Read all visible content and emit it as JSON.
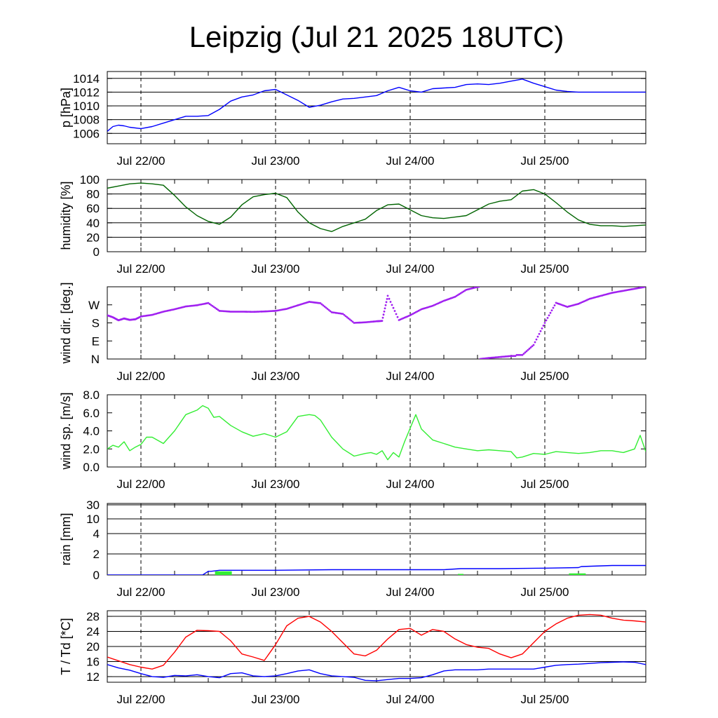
{
  "title": "Leipzig (Jul 21 2025 18UTC)",
  "x_tick_labels": [
    "Jul 22/00",
    "Jul 23/00",
    "Jul 24/00",
    "Jul 25/00"
  ],
  "colors": {
    "pressure": "#0000ff",
    "humidity": "#006400",
    "wind_direction": "#a020f0",
    "wind_speed": "#33ee33",
    "rain_accum": "#0000ff",
    "rain_bar": "#33ee33",
    "temperature": "#ff0000",
    "dewpoint": "#0000ff"
  },
  "chart_data": [
    {
      "type": "line",
      "ylabel": "p [hPa]",
      "x_unit": "hours since Jul 21 18UTC",
      "xlim": [
        0,
        96
      ],
      "ylim": [
        1004.5,
        1015
      ],
      "yticks": [
        1006,
        1008,
        1010,
        1012,
        1014
      ],
      "ytick_labels": [
        "1006",
        "1008",
        "1010",
        "1012",
        "1014"
      ],
      "series": [
        {
          "x": [
            0,
            1,
            2,
            3,
            4,
            6,
            8,
            10,
            12,
            14,
            16,
            18,
            20,
            22,
            24,
            26,
            28,
            30,
            32,
            34,
            36,
            38,
            40,
            42,
            44,
            46,
            48,
            50,
            52,
            54,
            56,
            58,
            60,
            62,
            64,
            66,
            68,
            70,
            72,
            74,
            76,
            78,
            80,
            82,
            84,
            86,
            88,
            90,
            92,
            94,
            96
          ],
          "y": [
            1006.3,
            1007.0,
            1007.2,
            1007.1,
            1006.9,
            1006.7,
            1007.0,
            1007.5,
            1008.0,
            1008.5,
            1008.5,
            1008.6,
            1009.5,
            1010.7,
            1011.3,
            1011.6,
            1012.2,
            1012.4,
            1011.6,
            1010.8,
            1009.8,
            1010.1,
            1010.6,
            1011.0,
            1011.1,
            1011.3,
            1011.5,
            1012.2,
            1012.7,
            1012.2,
            1012.0,
            1012.5,
            1012.6,
            1012.7,
            1013.1,
            1013.2,
            1013.1,
            1013.3,
            1013.6,
            1013.9,
            1013.3,
            1012.8,
            1012.3,
            1012.1,
            1012.0,
            1012.0,
            1012.0,
            1012.0,
            1012.0,
            1012.0,
            1012.0
          ]
        }
      ]
    },
    {
      "type": "line",
      "ylabel": "humidity [%]",
      "x_unit": "hours since Jul 21 18UTC",
      "xlim": [
        0,
        96
      ],
      "ylim": [
        0,
        100
      ],
      "yticks": [
        0,
        20,
        40,
        60,
        80,
        100
      ],
      "ytick_labels": [
        "0",
        "20",
        "40",
        "60",
        "80",
        "100"
      ],
      "series": [
        {
          "x": [
            0,
            2,
            4,
            6,
            8,
            10,
            12,
            14,
            16,
            18,
            20,
            22,
            24,
            26,
            28,
            30,
            32,
            34,
            36,
            38,
            40,
            42,
            44,
            46,
            48,
            50,
            52,
            54,
            56,
            58,
            60,
            62,
            64,
            66,
            68,
            70,
            72,
            74,
            76,
            78,
            80,
            82,
            84,
            86,
            88,
            90,
            92,
            94,
            96
          ],
          "y": [
            88,
            91,
            94,
            95,
            94,
            92,
            78,
            62,
            50,
            42,
            38,
            48,
            65,
            76,
            79,
            81,
            75,
            55,
            40,
            32,
            28,
            35,
            40,
            45,
            57,
            65,
            66,
            58,
            50,
            47,
            46,
            48,
            50,
            58,
            66,
            70,
            72,
            84,
            86,
            80,
            68,
            55,
            44,
            38,
            36,
            36,
            35,
            36,
            37
          ]
        }
      ]
    },
    {
      "type": "scatter",
      "ylabel": "wind dir. [deg.]",
      "x_unit": "hours since Jul 21 18UTC",
      "xlim": [
        0,
        96
      ],
      "ylim": [
        0,
        360
      ],
      "yticks": [
        0,
        90,
        180,
        270
      ],
      "ytick_labels": [
        "N",
        "E",
        "S",
        "W"
      ],
      "series": [
        {
          "x": [
            0,
            1,
            2,
            3,
            4,
            5,
            6,
            8,
            10,
            12,
            14,
            16,
            18,
            20,
            22,
            24,
            26,
            28,
            30,
            32,
            34,
            36,
            38,
            40,
            42,
            44,
            46,
            48,
            49,
            50,
            52,
            54,
            56,
            58,
            60,
            62,
            64,
            66,
            68,
            70,
            72,
            74,
            76,
            78,
            80,
            82,
            84,
            86,
            88,
            90,
            92,
            94,
            96
          ],
          "y": [
            218,
            208,
            193,
            202,
            195,
            198,
            212,
            220,
            236,
            248,
            262,
            268,
            279,
            240,
            236,
            236,
            235,
            237,
            240,
            250,
            268,
            285,
            278,
            233,
            225,
            180,
            183,
            188,
            190,
            315,
            194,
            218,
            248,
            265,
            290,
            310,
            345,
            359,
            365,
            370,
            375,
            20,
            70,
            180,
            280,
            260,
            275,
            300,
            315,
            330,
            340,
            350,
            360
          ]
        }
      ]
    },
    {
      "type": "line",
      "ylabel": "wind sp. [m/s]",
      "x_unit": "hours since Jul 21 18UTC",
      "xlim": [
        0,
        96
      ],
      "ylim": [
        0,
        8
      ],
      "yticks": [
        0,
        2,
        4,
        6,
        8
      ],
      "ytick_labels": [
        "0.0",
        "2.0",
        "4.0",
        "6.0",
        "8.0"
      ],
      "series": [
        {
          "x": [
            0,
            1,
            2,
            3,
            4,
            5,
            6,
            7,
            8,
            10,
            12,
            14,
            16,
            17,
            18,
            19,
            20,
            22,
            24,
            26,
            28,
            30,
            32,
            34,
            35,
            36,
            37,
            38,
            40,
            42,
            44,
            46,
            47,
            48,
            49,
            50,
            51,
            52,
            53,
            54,
            55,
            56,
            58,
            60,
            62,
            64,
            66,
            68,
            70,
            72,
            73,
            74,
            76,
            78,
            80,
            82,
            84,
            86,
            88,
            90,
            92,
            94,
            95,
            96
          ],
          "y": [
            2.0,
            2.4,
            2.2,
            2.8,
            1.8,
            2.2,
            2.5,
            3.3,
            3.3,
            2.6,
            4.0,
            5.8,
            6.3,
            6.8,
            6.5,
            5.5,
            5.6,
            4.6,
            3.9,
            3.4,
            3.7,
            3.3,
            3.9,
            5.6,
            5.7,
            5.8,
            5.7,
            5.2,
            3.3,
            2.0,
            1.2,
            1.5,
            1.6,
            1.4,
            1.8,
            0.8,
            1.6,
            1.1,
            2.8,
            4.3,
            5.8,
            4.2,
            3.0,
            2.6,
            2.2,
            2.0,
            1.8,
            1.9,
            1.8,
            1.7,
            1.0,
            1.1,
            1.5,
            1.4,
            1.7,
            1.6,
            1.5,
            1.6,
            1.8,
            1.8,
            1.6,
            2.0,
            3.5,
            1.7
          ]
        }
      ]
    },
    {
      "type": "line",
      "ylabel": "rain [mm]",
      "x_unit": "hours since Jul 21 18UTC",
      "xlim": [
        0,
        96
      ],
      "ylim": [
        0,
        30
      ],
      "y_scale": "nonlinear (labels 0, 2, 4, 10, 30 equally spaced above 2)",
      "yticks": [
        0,
        2,
        4,
        10,
        30
      ],
      "ytick_labels": [
        "0",
        "2",
        "4",
        "10",
        "30"
      ],
      "series": [
        {
          "x": [
            0,
            17,
            18,
            18.5,
            20,
            24,
            30,
            40,
            50,
            60,
            63,
            70,
            78,
            84,
            84.5,
            90,
            96
          ],
          "y": [
            0,
            0,
            0.35,
            0.35,
            0.45,
            0.45,
            0.45,
            0.5,
            0.5,
            0.5,
            0.6,
            0.6,
            0.65,
            0.7,
            0.8,
            0.9,
            0.9
          ]
        }
      ],
      "bars": [
        {
          "x_start": 19.2,
          "x_end": 22.2,
          "value": 0.35
        },
        {
          "x_start": 62.5,
          "x_end": 63.5,
          "value": 0.1
        },
        {
          "x_start": 82.3,
          "x_end": 85.3,
          "value": 0.15
        }
      ]
    },
    {
      "type": "line",
      "ylabel": "T / Td [*C]",
      "x_unit": "hours since Jul 21 18UTC",
      "xlim": [
        0,
        96
      ],
      "ylim": [
        10.5,
        29.5
      ],
      "yticks": [
        12,
        16,
        20,
        24,
        28
      ],
      "ytick_labels": [
        "12",
        "16",
        "20",
        "24",
        "28"
      ],
      "series": [
        {
          "x": [
            0,
            2,
            4,
            6,
            8,
            10,
            12,
            14,
            16,
            18,
            20,
            22,
            24,
            26,
            28,
            30,
            32,
            34,
            36,
            38,
            40,
            42,
            44,
            46,
            48,
            50,
            52,
            54,
            56,
            58,
            60,
            62,
            64,
            66,
            68,
            70,
            72,
            74,
            76,
            78,
            80,
            82,
            84,
            86,
            88,
            90,
            92,
            94,
            96
          ],
          "y": [
            17.2,
            16.2,
            15.2,
            14.5,
            14.0,
            15.0,
            18.5,
            22.5,
            24.3,
            24.2,
            24.0,
            21.5,
            18.0,
            17.2,
            16.3,
            20.5,
            25.5,
            27.5,
            28.0,
            26.5,
            24.0,
            21.0,
            18.0,
            17.5,
            19.0,
            22.0,
            24.5,
            24.8,
            23.0,
            24.5,
            24.0,
            22.0,
            20.5,
            19.8,
            19.5,
            18.0,
            17.0,
            18.0,
            21.0,
            24.0,
            26.0,
            27.5,
            28.3,
            28.5,
            28.3,
            27.5,
            27.0,
            26.8,
            26.5
          ]
        },
        {
          "x": [
            0,
            2,
            4,
            6,
            8,
            10,
            12,
            14,
            16,
            18,
            20,
            22,
            24,
            26,
            28,
            30,
            32,
            34,
            36,
            38,
            40,
            42,
            44,
            46,
            48,
            50,
            52,
            54,
            56,
            58,
            60,
            62,
            64,
            66,
            68,
            70,
            72,
            74,
            76,
            78,
            80,
            82,
            84,
            86,
            88,
            90,
            92,
            94,
            96
          ],
          "y": [
            15.2,
            14.3,
            13.7,
            12.8,
            12.0,
            11.8,
            12.3,
            12.2,
            12.5,
            12.0,
            11.7,
            12.8,
            13.0,
            12.2,
            12.0,
            12.2,
            12.8,
            13.5,
            13.8,
            12.8,
            12.2,
            12.0,
            11.8,
            11.0,
            10.9,
            11.2,
            11.5,
            11.5,
            11.7,
            12.5,
            13.5,
            13.8,
            13.8,
            13.8,
            14.0,
            14.0,
            14.0,
            14.0,
            14.0,
            14.5,
            15.0,
            15.2,
            15.3,
            15.5,
            15.7,
            15.8,
            15.9,
            15.8,
            15.2
          ]
        }
      ]
    }
  ]
}
